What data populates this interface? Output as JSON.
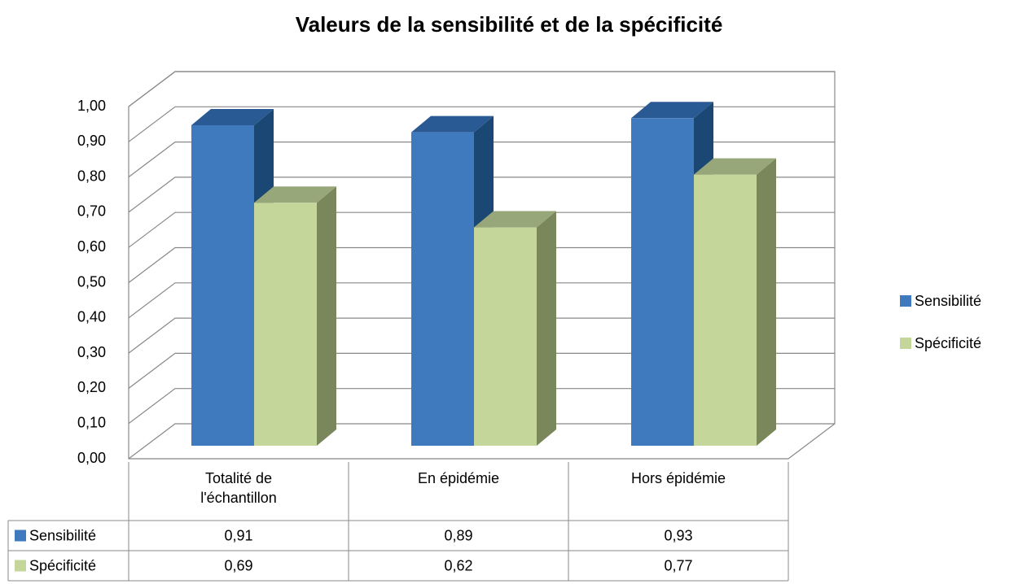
{
  "chart_data": {
    "type": "bar3d",
    "title": "Valeurs de la sensibilité et de la spécificité",
    "categories": [
      "Totalité de l'échantillon",
      "En épidémie",
      "Hors épidémie"
    ],
    "series": [
      {
        "name": "Sensibilité",
        "color": "#3f7abf",
        "values": [
          0.91,
          0.89,
          0.93
        ],
        "value_labels": [
          "0,91",
          "0,89",
          "0,93"
        ]
      },
      {
        "name": "Spécificité",
        "color": "#c4d69a",
        "values": [
          0.69,
          0.62,
          0.77
        ],
        "value_labels": [
          "0,69",
          "0,62",
          "0,77"
        ]
      }
    ],
    "ylim": [
      0,
      1
    ],
    "yticks": [
      {
        "value": 0,
        "label": "0,00"
      },
      {
        "value": 0.1,
        "label": "0,10"
      },
      {
        "value": 0.2,
        "label": "0,20"
      },
      {
        "value": 0.3,
        "label": "0,30"
      },
      {
        "value": 0.4,
        "label": "0,40"
      },
      {
        "value": 0.5,
        "label": "0,50"
      },
      {
        "value": 0.6,
        "label": "0,60"
      },
      {
        "value": 0.7,
        "label": "0,70"
      },
      {
        "value": 0.8,
        "label": "0,80"
      },
      {
        "value": 0.9,
        "label": "0,90"
      },
      {
        "value": 1,
        "label": "1,00"
      }
    ],
    "grid": true,
    "legend": "right",
    "data_table": true
  }
}
